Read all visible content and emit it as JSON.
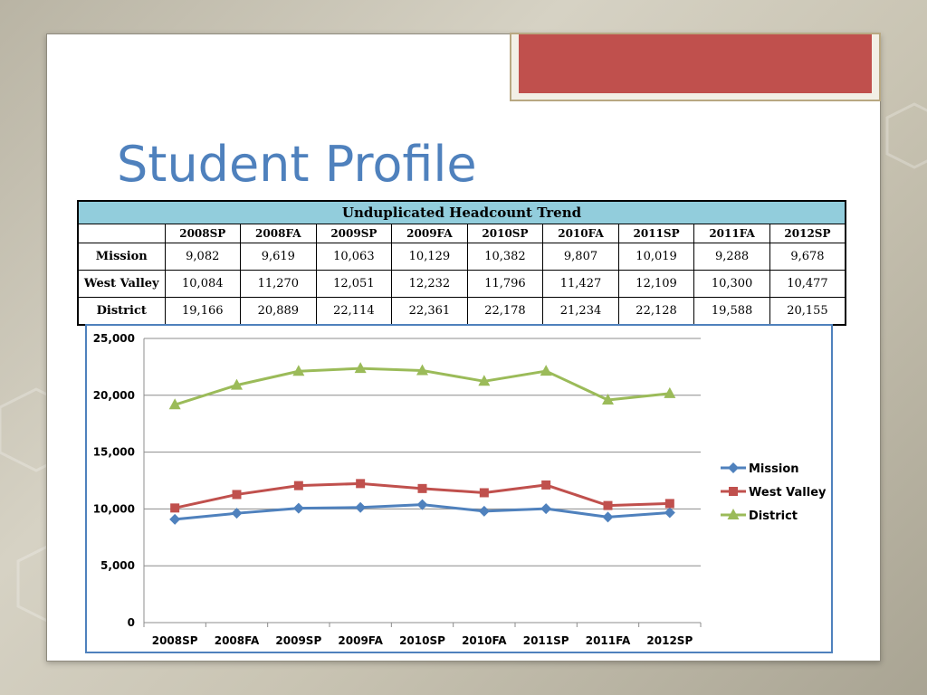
{
  "slide": {
    "title": "Student Profile"
  },
  "table": {
    "caption": "Unduplicated Headcount Trend",
    "corner": "",
    "columns": [
      "2008SP",
      "2008FA",
      "2009SP",
      "2009FA",
      "2010SP",
      "2010FA",
      "2011SP",
      "2011FA",
      "2012SP"
    ],
    "rows": [
      {
        "label": "Mission",
        "values": [
          "9,082",
          "9,619",
          "10,063",
          "10,129",
          "10,382",
          "9,807",
          "10,019",
          "9,288",
          "9,678"
        ]
      },
      {
        "label": "West Valley",
        "values": [
          "10,084",
          "11,270",
          "12,051",
          "12,232",
          "11,796",
          "11,427",
          "12,109",
          "10,300",
          "10,477"
        ]
      },
      {
        "label": "District",
        "values": [
          "19,166",
          "20,889",
          "22,114",
          "22,361",
          "22,178",
          "21,234",
          "22,128",
          "19,588",
          "20,155"
        ]
      }
    ]
  },
  "chart_data": {
    "type": "line",
    "title": "",
    "xlabel": "",
    "ylabel": "",
    "categories": [
      "2008SP",
      "2008FA",
      "2009SP",
      "2009FA",
      "2010SP",
      "2010FA",
      "2011SP",
      "2011FA",
      "2012SP"
    ],
    "ylim": [
      0,
      25000
    ],
    "yticks": [
      0,
      5000,
      10000,
      15000,
      20000,
      25000
    ],
    "ytick_labels": [
      "0",
      "5,000",
      "10,000",
      "15,000",
      "20,000",
      "25,000"
    ],
    "grid": true,
    "legend_position": "right",
    "series": [
      {
        "name": "Mission",
        "color": "#4f81bd",
        "marker": "diamond",
        "values": [
          9082,
          9619,
          10063,
          10129,
          10382,
          9807,
          10019,
          9288,
          9678
        ]
      },
      {
        "name": "West Valley",
        "color": "#c0504d",
        "marker": "square",
        "values": [
          10084,
          11270,
          12051,
          12232,
          11796,
          11427,
          12109,
          10300,
          10477
        ]
      },
      {
        "name": "District",
        "color": "#9bbb59",
        "marker": "triangle",
        "values": [
          19166,
          20889,
          22114,
          22361,
          22178,
          21234,
          22128,
          19588,
          20155
        ]
      }
    ]
  }
}
